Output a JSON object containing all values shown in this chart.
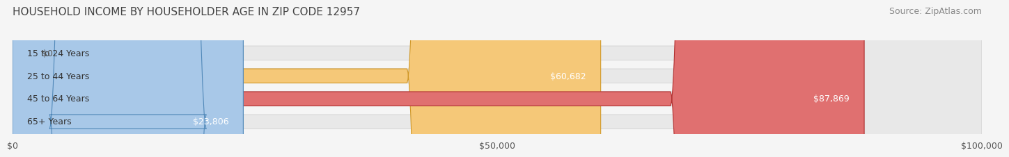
{
  "title": "HOUSEHOLD INCOME BY HOUSEHOLDER AGE IN ZIP CODE 12957",
  "source": "Source: ZipAtlas.com",
  "categories": [
    "15 to 24 Years",
    "25 to 44 Years",
    "45 to 64 Years",
    "65+ Years"
  ],
  "values": [
    0,
    60682,
    87869,
    23806
  ],
  "labels": [
    "$0",
    "$60,682",
    "$87,869",
    "$23,806"
  ],
  "bar_colors": [
    "#f4a0b0",
    "#f5c878",
    "#e07070",
    "#a8c8e8"
  ],
  "bar_edge_colors": [
    "#d07090",
    "#d09828",
    "#b03030",
    "#5088b8"
  ],
  "xlim": [
    0,
    100000
  ],
  "xticks": [
    0,
    50000,
    100000
  ],
  "xticklabels": [
    "$0",
    "$50,000",
    "$100,000"
  ],
  "background_color": "#f5f5f5",
  "bar_background_color": "#e8e8e8",
  "title_fontsize": 11,
  "source_fontsize": 9,
  "label_fontsize": 9,
  "tick_fontsize": 9,
  "category_fontsize": 9
}
